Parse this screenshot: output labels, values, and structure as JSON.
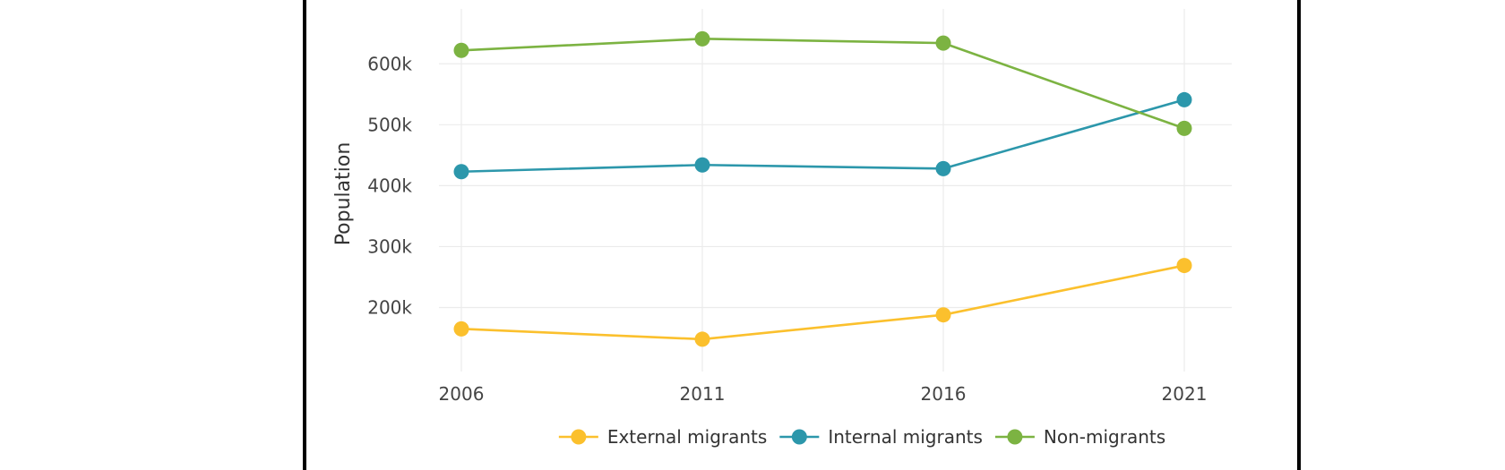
{
  "chart_data": {
    "type": "line",
    "title": "",
    "xlabel": "",
    "ylabel": "Population",
    "x": [
      "2006",
      "2011",
      "2016",
      "2021"
    ],
    "yticks": [
      200000,
      300000,
      400000,
      500000,
      600000
    ],
    "ytick_labels": [
      "200k",
      "300k",
      "400k",
      "500k",
      "600k"
    ],
    "ylim": [
      95000,
      690000
    ],
    "grid": true,
    "legend_position": "bottom",
    "series": [
      {
        "name": "External migrants",
        "color": "#FBC02D",
        "values": [
          165000,
          148000,
          188000,
          269000
        ]
      },
      {
        "name": "Internal migrants",
        "color": "#2C97AB",
        "values": [
          423000,
          434000,
          428000,
          541000
        ]
      },
      {
        "name": "Non-migrants",
        "color": "#7CB342",
        "values": [
          622000,
          641000,
          634000,
          494000
        ]
      }
    ]
  }
}
